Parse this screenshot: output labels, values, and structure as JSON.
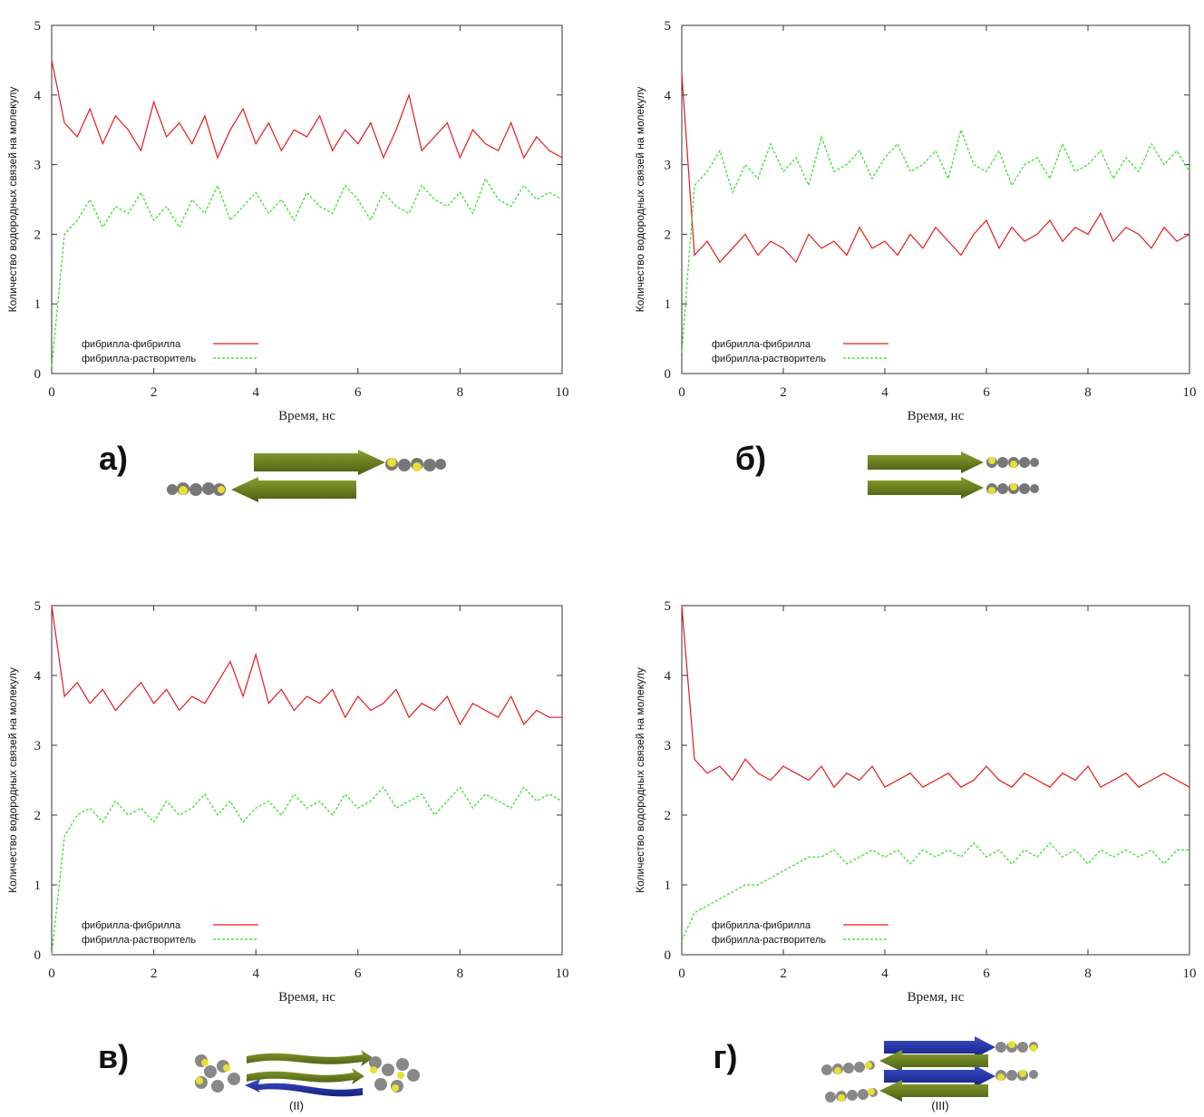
{
  "chart_data": [
    {
      "type": "line",
      "panel_label": "а)",
      "xlabel": "Время, нс",
      "ylabel": "Количество водородных связей на молекулу",
      "xlim": [
        0,
        10
      ],
      "xticks": [
        0,
        2,
        4,
        6,
        8,
        10
      ],
      "ylim": [
        0,
        5
      ],
      "yticks": [
        0,
        1,
        2,
        3,
        4,
        5
      ],
      "grid": false,
      "x": [
        0,
        0.25,
        0.5,
        0.75,
        1,
        1.25,
        1.5,
        1.75,
        2,
        2.25,
        2.5,
        2.75,
        3,
        3.25,
        3.5,
        3.75,
        4,
        4.25,
        4.5,
        4.75,
        5,
        5.25,
        5.5,
        5.75,
        6,
        6.25,
        6.5,
        6.75,
        7,
        7.25,
        7.5,
        7.75,
        8,
        8.25,
        8.5,
        8.75,
        9,
        9.25,
        9.5,
        9.75,
        10
      ],
      "series": [
        {
          "name": "фибрилла-фибрилла",
          "color": "#e41a1c",
          "dash": false,
          "values": [
            4.5,
            3.6,
            3.4,
            3.8,
            3.3,
            3.7,
            3.5,
            3.2,
            3.9,
            3.4,
            3.6,
            3.3,
            3.7,
            3.1,
            3.5,
            3.8,
            3.3,
            3.6,
            3.2,
            3.5,
            3.4,
            3.7,
            3.2,
            3.5,
            3.3,
            3.6,
            3.1,
            3.5,
            4.0,
            3.2,
            3.4,
            3.6,
            3.1,
            3.5,
            3.3,
            3.2,
            3.6,
            3.1,
            3.4,
            3.2,
            3.1
          ]
        },
        {
          "name": "фибрилла-растворитель",
          "color": "#33dd22",
          "dash": true,
          "values": [
            0.1,
            2.0,
            2.2,
            2.5,
            2.1,
            2.4,
            2.3,
            2.6,
            2.2,
            2.4,
            2.1,
            2.5,
            2.3,
            2.7,
            2.2,
            2.4,
            2.6,
            2.3,
            2.5,
            2.2,
            2.6,
            2.4,
            2.3,
            2.7,
            2.5,
            2.2,
            2.6,
            2.4,
            2.3,
            2.7,
            2.5,
            2.4,
            2.6,
            2.3,
            2.8,
            2.5,
            2.4,
            2.7,
            2.5,
            2.6,
            2.5
          ]
        }
      ]
    },
    {
      "type": "line",
      "panel_label": "б)",
      "xlabel": "Время, нс",
      "ylabel": "Количество водородных связей на молекулу",
      "xlim": [
        0,
        10
      ],
      "xticks": [
        0,
        2,
        4,
        6,
        8,
        10
      ],
      "ylim": [
        0,
        5
      ],
      "yticks": [
        0,
        1,
        2,
        3,
        4,
        5
      ],
      "grid": false,
      "x": [
        0,
        0.25,
        0.5,
        0.75,
        1,
        1.25,
        1.5,
        1.75,
        2,
        2.25,
        2.5,
        2.75,
        3,
        3.25,
        3.5,
        3.75,
        4,
        4.25,
        4.5,
        4.75,
        5,
        5.25,
        5.5,
        5.75,
        6,
        6.25,
        6.5,
        6.75,
        7,
        7.25,
        7.5,
        7.75,
        8,
        8.25,
        8.5,
        8.75,
        9,
        9.25,
        9.5,
        9.75,
        10
      ],
      "series": [
        {
          "name": "фибрилла-фибрилла",
          "color": "#e41a1c",
          "dash": false,
          "values": [
            4.3,
            1.7,
            1.9,
            1.6,
            1.8,
            2.0,
            1.7,
            1.9,
            1.8,
            1.6,
            2.0,
            1.8,
            1.9,
            1.7,
            2.1,
            1.8,
            1.9,
            1.7,
            2.0,
            1.8,
            2.1,
            1.9,
            1.7,
            2.0,
            2.2,
            1.8,
            2.1,
            1.9,
            2.0,
            2.2,
            1.9,
            2.1,
            2.0,
            2.3,
            1.9,
            2.1,
            2.0,
            1.8,
            2.1,
            1.9,
            2.0
          ]
        },
        {
          "name": "фибрилла-растворитель",
          "color": "#33dd22",
          "dash": true,
          "values": [
            0.3,
            2.7,
            2.9,
            3.2,
            2.6,
            3.0,
            2.8,
            3.3,
            2.9,
            3.1,
            2.7,
            3.4,
            2.9,
            3.0,
            3.2,
            2.8,
            3.1,
            3.3,
            2.9,
            3.0,
            3.2,
            2.8,
            3.5,
            3.0,
            2.9,
            3.2,
            2.7,
            3.0,
            3.1,
            2.8,
            3.3,
            2.9,
            3.0,
            3.2,
            2.8,
            3.1,
            2.9,
            3.3,
            3.0,
            3.2,
            2.9
          ]
        }
      ]
    },
    {
      "type": "line",
      "panel_label": "в)",
      "caption": "(II)",
      "xlabel": "Время, нс",
      "ylabel": "Количество водородных связей на молекулу",
      "xlim": [
        0,
        10
      ],
      "xticks": [
        0,
        2,
        4,
        6,
        8,
        10
      ],
      "ylim": [
        0,
        5
      ],
      "yticks": [
        0,
        1,
        2,
        3,
        4,
        5
      ],
      "grid": false,
      "x": [
        0,
        0.25,
        0.5,
        0.75,
        1,
        1.25,
        1.5,
        1.75,
        2,
        2.25,
        2.5,
        2.75,
        3,
        3.25,
        3.5,
        3.75,
        4,
        4.25,
        4.5,
        4.75,
        5,
        5.25,
        5.5,
        5.75,
        6,
        6.25,
        6.5,
        6.75,
        7,
        7.25,
        7.5,
        7.75,
        8,
        8.25,
        8.5,
        8.75,
        9,
        9.25,
        9.5,
        9.75,
        10
      ],
      "series": [
        {
          "name": "фибрилла-фибрилла",
          "color": "#e41a1c",
          "dash": false,
          "values": [
            5.0,
            3.7,
            3.9,
            3.6,
            3.8,
            3.5,
            3.7,
            3.9,
            3.6,
            3.8,
            3.5,
            3.7,
            3.6,
            3.9,
            4.2,
            3.7,
            4.3,
            3.6,
            3.8,
            3.5,
            3.7,
            3.6,
            3.8,
            3.4,
            3.7,
            3.5,
            3.6,
            3.8,
            3.4,
            3.6,
            3.5,
            3.7,
            3.3,
            3.6,
            3.5,
            3.4,
            3.7,
            3.3,
            3.5,
            3.4,
            3.4
          ]
        },
        {
          "name": "фибрилла-растворитель",
          "color": "#33dd22",
          "dash": true,
          "values": [
            0,
            1.7,
            2.0,
            2.1,
            1.9,
            2.2,
            2.0,
            2.1,
            1.9,
            2.2,
            2.0,
            2.1,
            2.3,
            2.0,
            2.2,
            1.9,
            2.1,
            2.2,
            2.0,
            2.3,
            2.1,
            2.2,
            2.0,
            2.3,
            2.1,
            2.2,
            2.4,
            2.1,
            2.2,
            2.3,
            2.0,
            2.2,
            2.4,
            2.1,
            2.3,
            2.2,
            2.1,
            2.4,
            2.2,
            2.3,
            2.2
          ]
        }
      ]
    },
    {
      "type": "line",
      "panel_label": "г)",
      "caption": "(III)",
      "xlabel": "Время, нс",
      "ylabel": "Количество водородных связей на молекулу",
      "xlim": [
        0,
        10
      ],
      "xticks": [
        0,
        2,
        4,
        6,
        8,
        10
      ],
      "ylim": [
        0,
        5
      ],
      "yticks": [
        0,
        1,
        2,
        3,
        4,
        5
      ],
      "grid": false,
      "x": [
        0,
        0.25,
        0.5,
        0.75,
        1,
        1.25,
        1.5,
        1.75,
        2,
        2.25,
        2.5,
        2.75,
        3,
        3.25,
        3.5,
        3.75,
        4,
        4.25,
        4.5,
        4.75,
        5,
        5.25,
        5.5,
        5.75,
        6,
        6.25,
        6.5,
        6.75,
        7,
        7.25,
        7.5,
        7.75,
        8,
        8.25,
        8.5,
        8.75,
        9,
        9.25,
        9.5,
        9.75,
        10
      ],
      "series": [
        {
          "name": "фибрилла-фибрилла",
          "color": "#e41a1c",
          "dash": false,
          "values": [
            5.0,
            2.8,
            2.6,
            2.7,
            2.5,
            2.8,
            2.6,
            2.5,
            2.7,
            2.6,
            2.5,
            2.7,
            2.4,
            2.6,
            2.5,
            2.7,
            2.4,
            2.5,
            2.6,
            2.4,
            2.5,
            2.6,
            2.4,
            2.5,
            2.7,
            2.5,
            2.4,
            2.6,
            2.5,
            2.4,
            2.6,
            2.5,
            2.7,
            2.4,
            2.5,
            2.6,
            2.4,
            2.5,
            2.6,
            2.5,
            2.4
          ]
        },
        {
          "name": "фибрилла-растворитель",
          "color": "#33dd22",
          "dash": true,
          "values": [
            0.2,
            0.6,
            0.7,
            0.8,
            0.9,
            1.0,
            1.0,
            1.1,
            1.2,
            1.3,
            1.4,
            1.4,
            1.5,
            1.3,
            1.4,
            1.5,
            1.4,
            1.5,
            1.3,
            1.5,
            1.4,
            1.5,
            1.4,
            1.6,
            1.4,
            1.5,
            1.3,
            1.5,
            1.4,
            1.6,
            1.4,
            1.5,
            1.3,
            1.5,
            1.4,
            1.5,
            1.4,
            1.5,
            1.3,
            1.5,
            1.5
          ]
        }
      ]
    }
  ]
}
